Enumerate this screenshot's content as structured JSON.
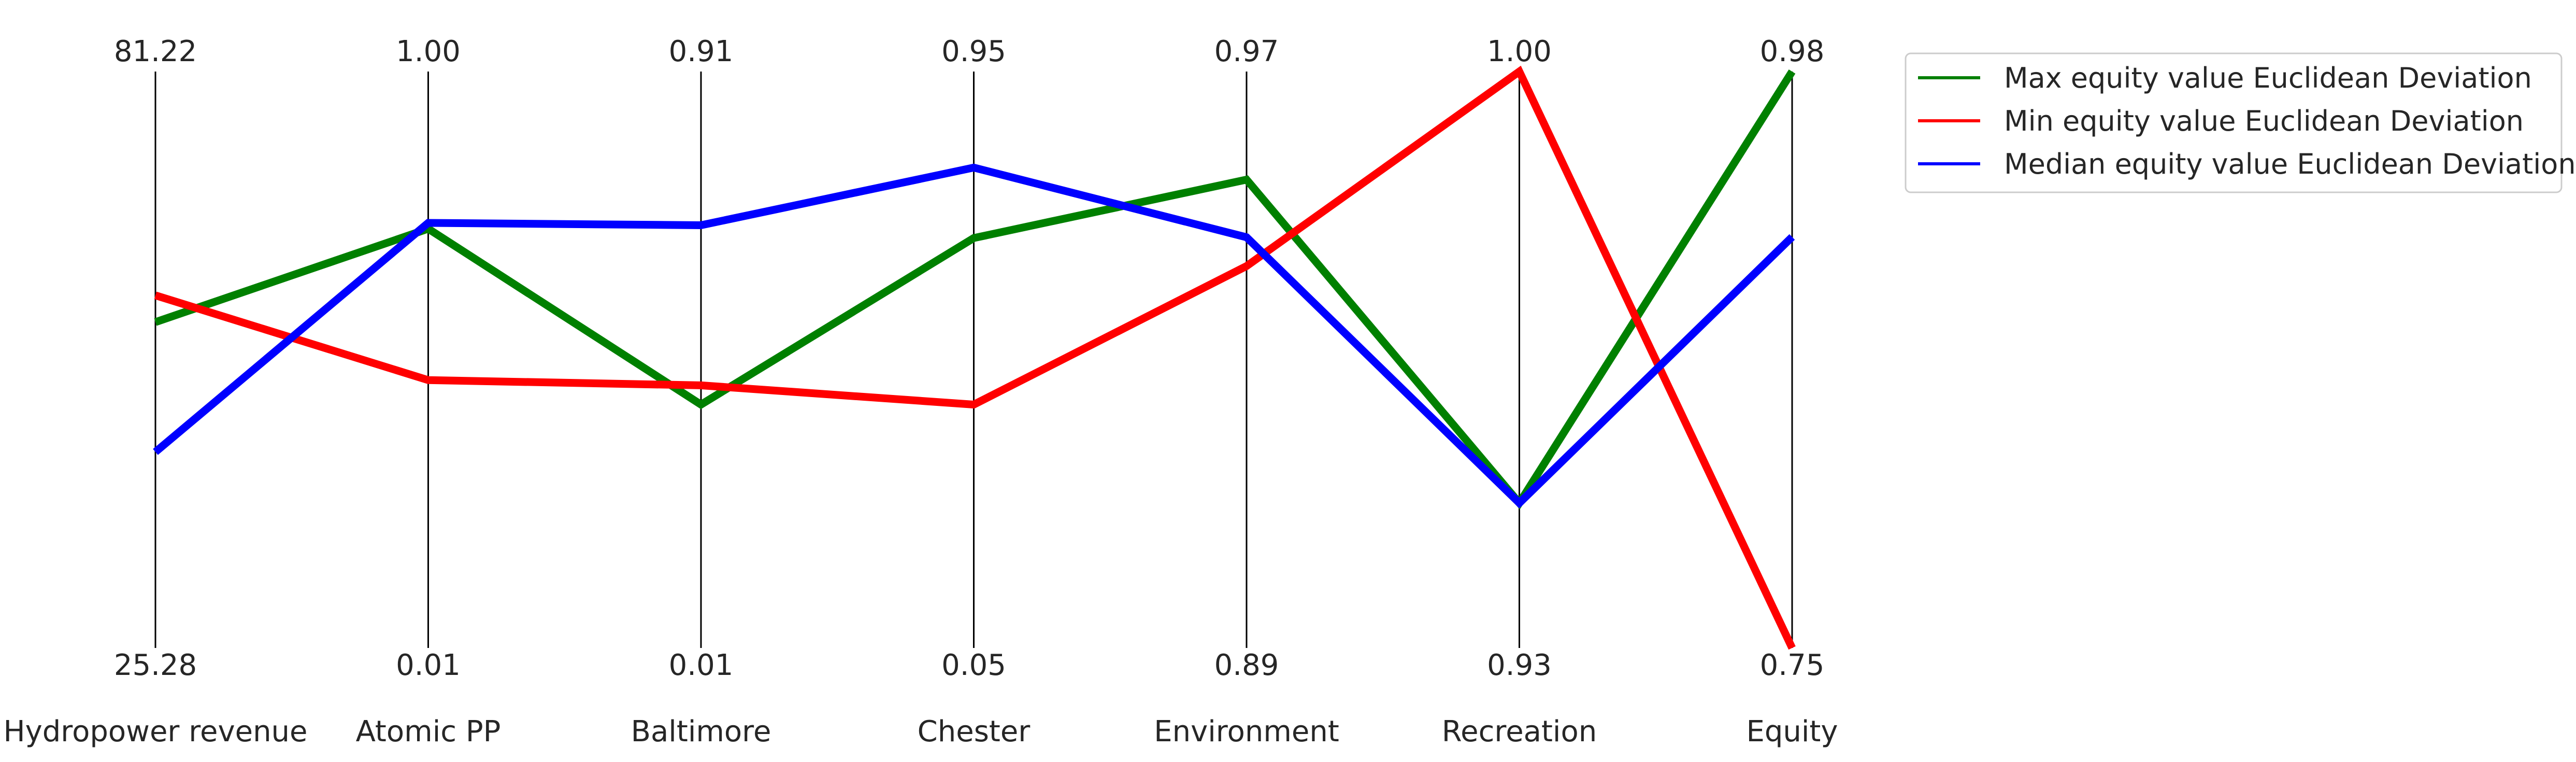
{
  "chart_data": {
    "type": "line",
    "subtype": "parallel-coordinates",
    "title": "",
    "grid": false,
    "legend_placement": "top-right, outside plot",
    "axes": [
      {
        "label": "Hydropower revenue",
        "max_label": "81.22",
        "min_label": "25.28",
        "range": [
          25.28,
          81.22
        ]
      },
      {
        "label": "Atomic PP",
        "max_label": "1.00",
        "min_label": "0.01",
        "range": [
          0.01,
          1.0
        ]
      },
      {
        "label": "Baltimore",
        "max_label": "0.91",
        "min_label": "0.01",
        "range": [
          0.01,
          0.91
        ]
      },
      {
        "label": "Chester",
        "max_label": "0.95",
        "min_label": "0.05",
        "range": [
          0.05,
          0.95
        ]
      },
      {
        "label": "Environment",
        "max_label": "0.97",
        "min_label": "0.89",
        "range": [
          0.89,
          0.97
        ]
      },
      {
        "label": "Recreation",
        "max_label": "1.00",
        "min_label": "0.93",
        "range": [
          0.93,
          1.0
        ]
      },
      {
        "label": "Equity",
        "max_label": "0.98",
        "min_label": "0.75",
        "range": [
          0.75,
          0.98
        ]
      }
    ],
    "series": [
      {
        "name": "Max equity value Euclidean Deviation",
        "color": "#008000",
        "values": [
          56.9,
          0.73,
          0.39,
          0.69,
          0.955,
          0.9476,
          0.98
        ]
      },
      {
        "name": "Min equity value Euclidean Deviation",
        "color": "#ff0000",
        "values": [
          59.5,
          0.47,
          0.42,
          0.43,
          0.943,
          1.0,
          0.75
        ]
      },
      {
        "name": "Median equity value Euclidean Deviation",
        "color": "#0000ff",
        "values": [
          44.3,
          0.74,
          0.67,
          0.8,
          0.947,
          0.9476,
          0.914
        ]
      }
    ]
  }
}
